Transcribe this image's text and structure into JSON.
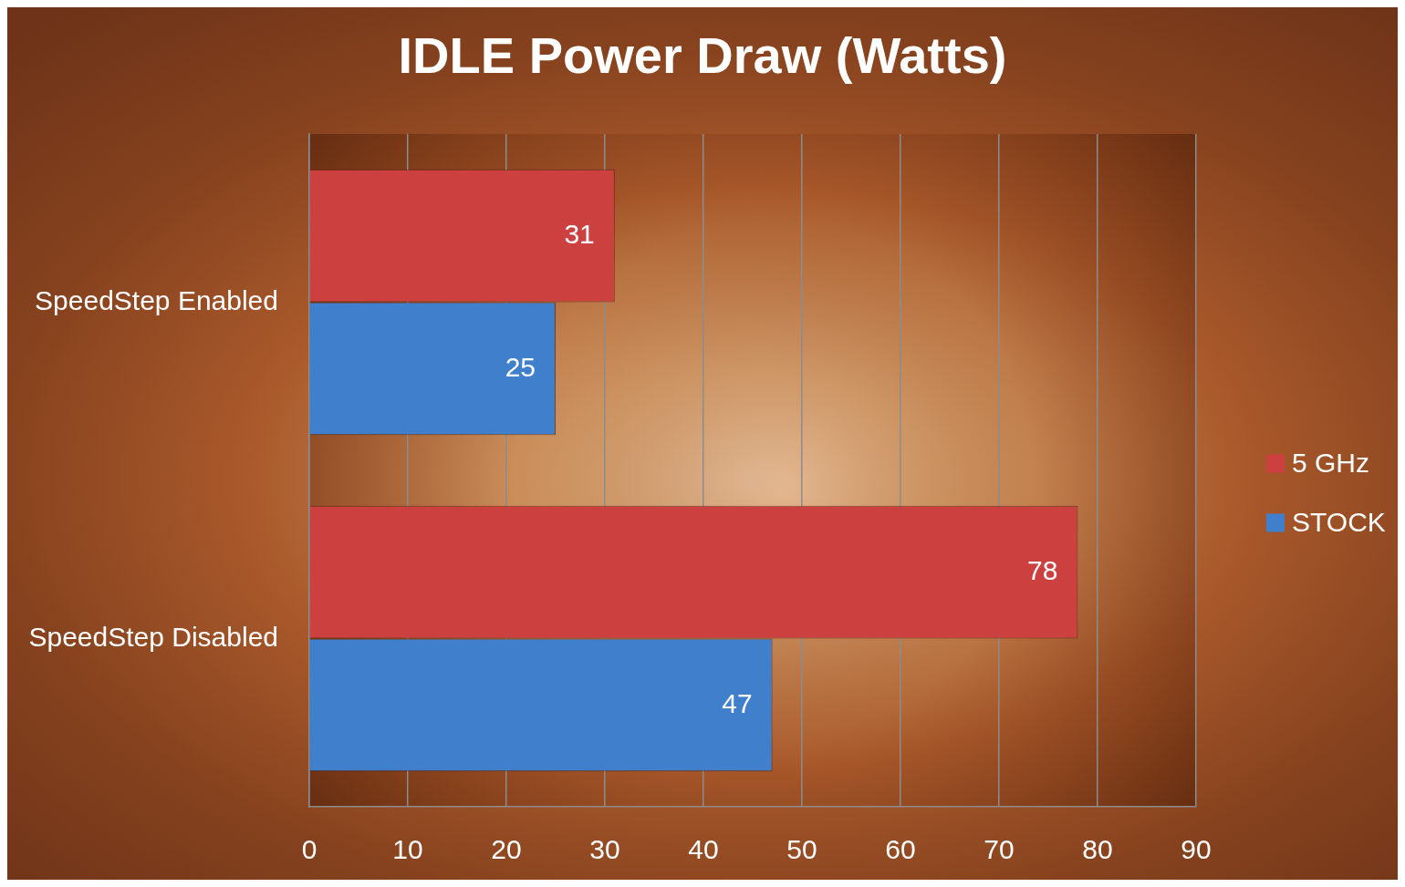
{
  "chart_data": {
    "type": "bar",
    "orientation": "horizontal",
    "title": "IDLE Power Draw (Watts)",
    "categories": [
      "SpeedStep Enabled",
      "SpeedStep Disabled"
    ],
    "series": [
      {
        "name": "5 GHz",
        "color": "#cc4040",
        "values": [
          31,
          78
        ]
      },
      {
        "name": "STOCK",
        "color": "#3f7fcc",
        "values": [
          25,
          47
        ]
      }
    ],
    "xlim": [
      0,
      90
    ],
    "xticks": [
      0,
      10,
      20,
      30,
      40,
      50,
      60,
      70,
      80,
      90
    ],
    "grid": "x",
    "legend": "right",
    "data_labels": true
  }
}
